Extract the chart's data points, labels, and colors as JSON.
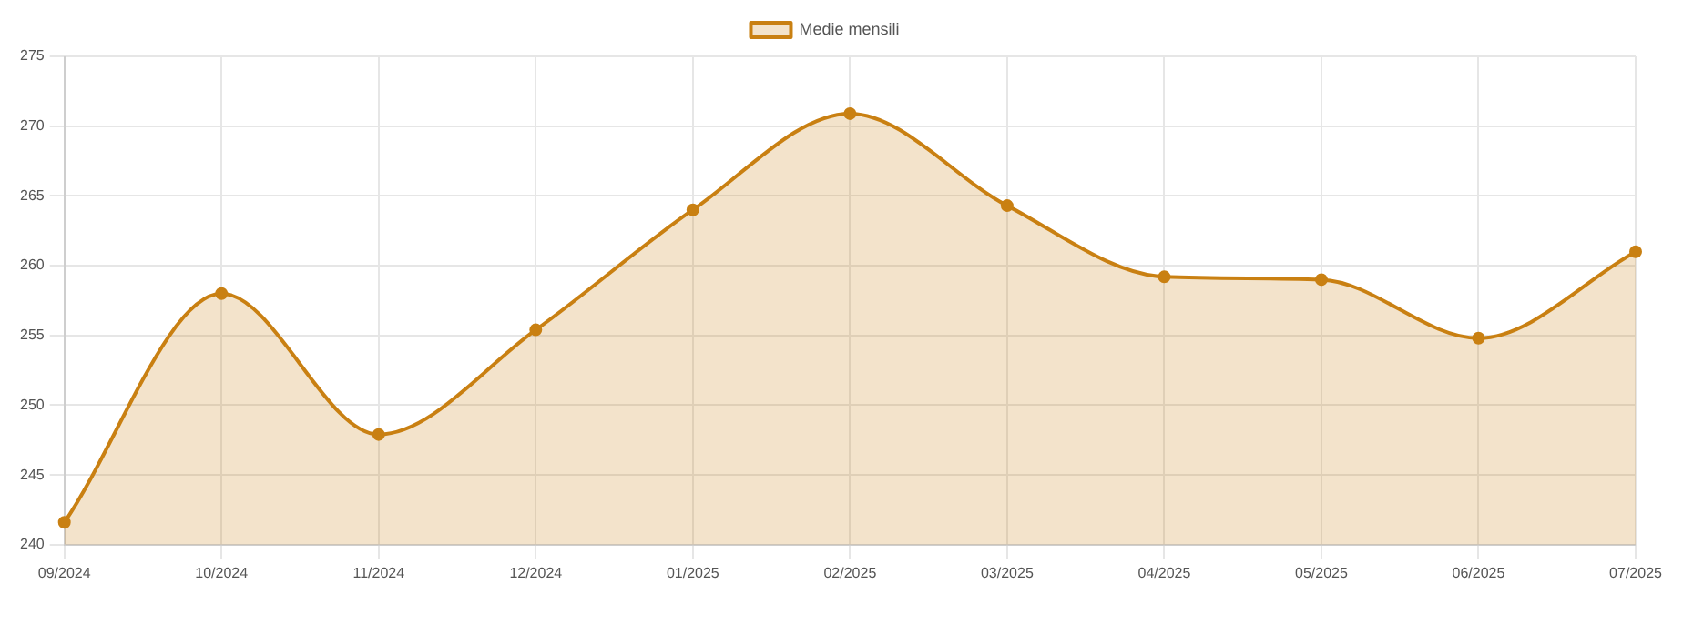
{
  "chart_data": {
    "type": "area",
    "categories": [
      "09/2024",
      "10/2024",
      "11/2024",
      "12/2024",
      "01/2025",
      "02/2025",
      "03/2025",
      "04/2025",
      "05/2025",
      "06/2025",
      "07/2025"
    ],
    "series": [
      {
        "name": "Medie mensili",
        "color": "#c98012",
        "values": [
          241.6,
          258.0,
          247.9,
          255.4,
          264.0,
          270.9,
          264.3,
          259.2,
          259.0,
          254.8,
          261.0
        ]
      }
    ],
    "ylim": [
      240,
      275
    ],
    "yticks": [
      240,
      245,
      250,
      255,
      260,
      265,
      270,
      275
    ],
    "grid": true,
    "legend": "top",
    "marker": "circle",
    "line_style": "solid"
  }
}
